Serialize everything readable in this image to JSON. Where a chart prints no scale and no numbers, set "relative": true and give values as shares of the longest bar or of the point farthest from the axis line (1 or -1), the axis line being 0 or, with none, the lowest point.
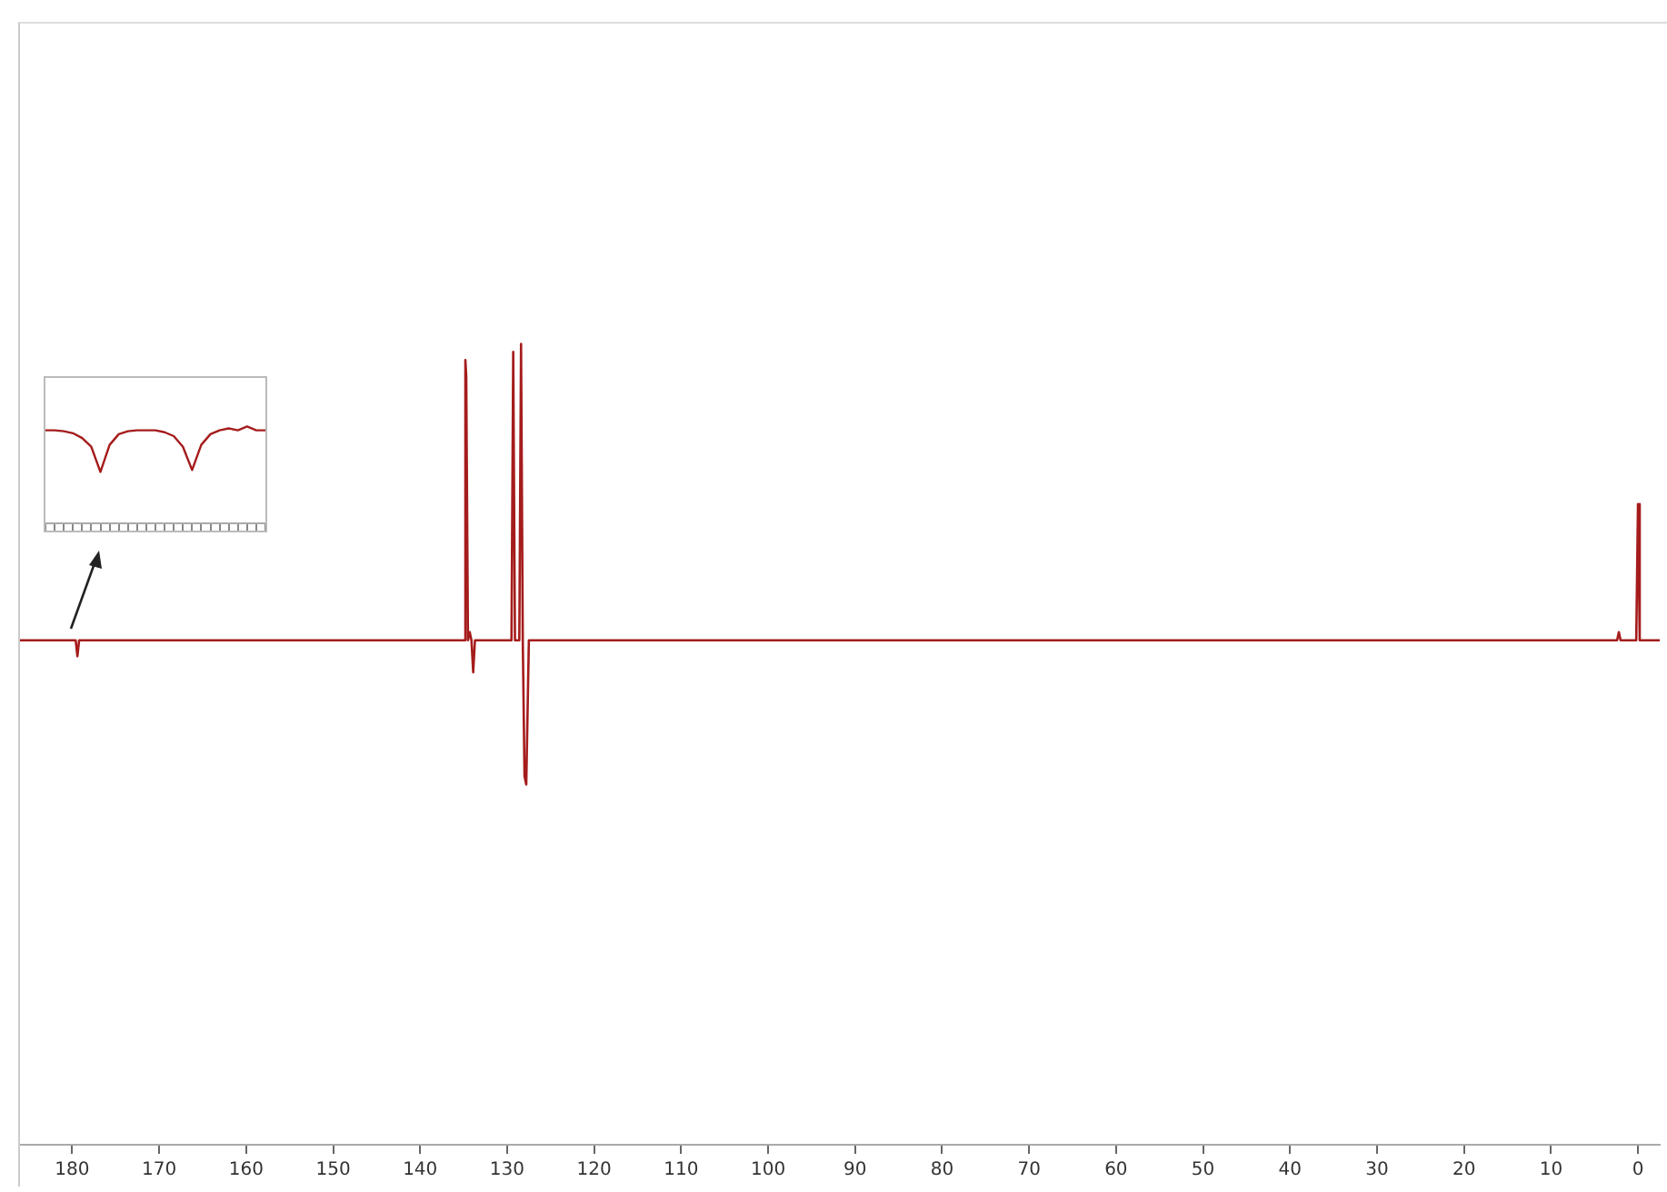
{
  "chart_data": [
    {
      "type": "line",
      "relative": true,
      "xlim": [
        186,
        -2.5
      ],
      "xticks": [
        180,
        170,
        160,
        150,
        140,
        130,
        120,
        110,
        100,
        90,
        80,
        70,
        60,
        50,
        40,
        30,
        20,
        10,
        0
      ],
      "grid": false,
      "legend": false,
      "tick_labels": "x",
      "series": [
        {
          "color": "#a51c1c",
          "x": [
            186,
            179.6,
            179.4,
            179.2,
            135.0,
            134.8,
            134.7,
            134.5,
            134.3,
            134.1,
            133.9,
            133.7,
            129.5,
            129.3,
            129.1,
            128.6,
            128.4,
            128.2,
            128.0,
            127.8,
            127.5,
            127.3,
            125,
            2.4,
            2.2,
            2.0,
            0.2,
            0,
            -0.2,
            -2.5
          ],
          "values": [
            0.63,
            0.63,
            0.61,
            0.63,
            0.63,
            0.98,
            0.96,
            0.63,
            0.64,
            0.63,
            0.59,
            0.63,
            0.63,
            0.99,
            0.63,
            0.63,
            1,
            0.63,
            0.46,
            0.45,
            0.63,
            0.63,
            0.63,
            0.63,
            0.64,
            0.63,
            0.63,
            0.8,
            0.63,
            0.63
          ]
        }
      ]
    },
    {
      "type": "line",
      "relative": true,
      "tick_labels": false,
      "grid": false,
      "legend": false,
      "categories": [
        null,
        null,
        null,
        null,
        null,
        null,
        null,
        null,
        null,
        null,
        null,
        null,
        null,
        null,
        null,
        null,
        null,
        null,
        null,
        null,
        null,
        null,
        null,
        null,
        null
      ],
      "series": [
        {
          "color": "#a51c1c",
          "values": [
            0.96,
            0.96,
            0.95,
            0.93,
            0.88,
            0.79,
            0.53,
            0.81,
            0.92,
            0.95,
            0.96,
            0.96,
            0.96,
            0.94,
            0.9,
            0.79,
            0.55,
            0.81,
            0.92,
            0.96,
            0.98,
            0.96,
            1,
            0.96,
            0.96
          ]
        }
      ]
    }
  ]
}
